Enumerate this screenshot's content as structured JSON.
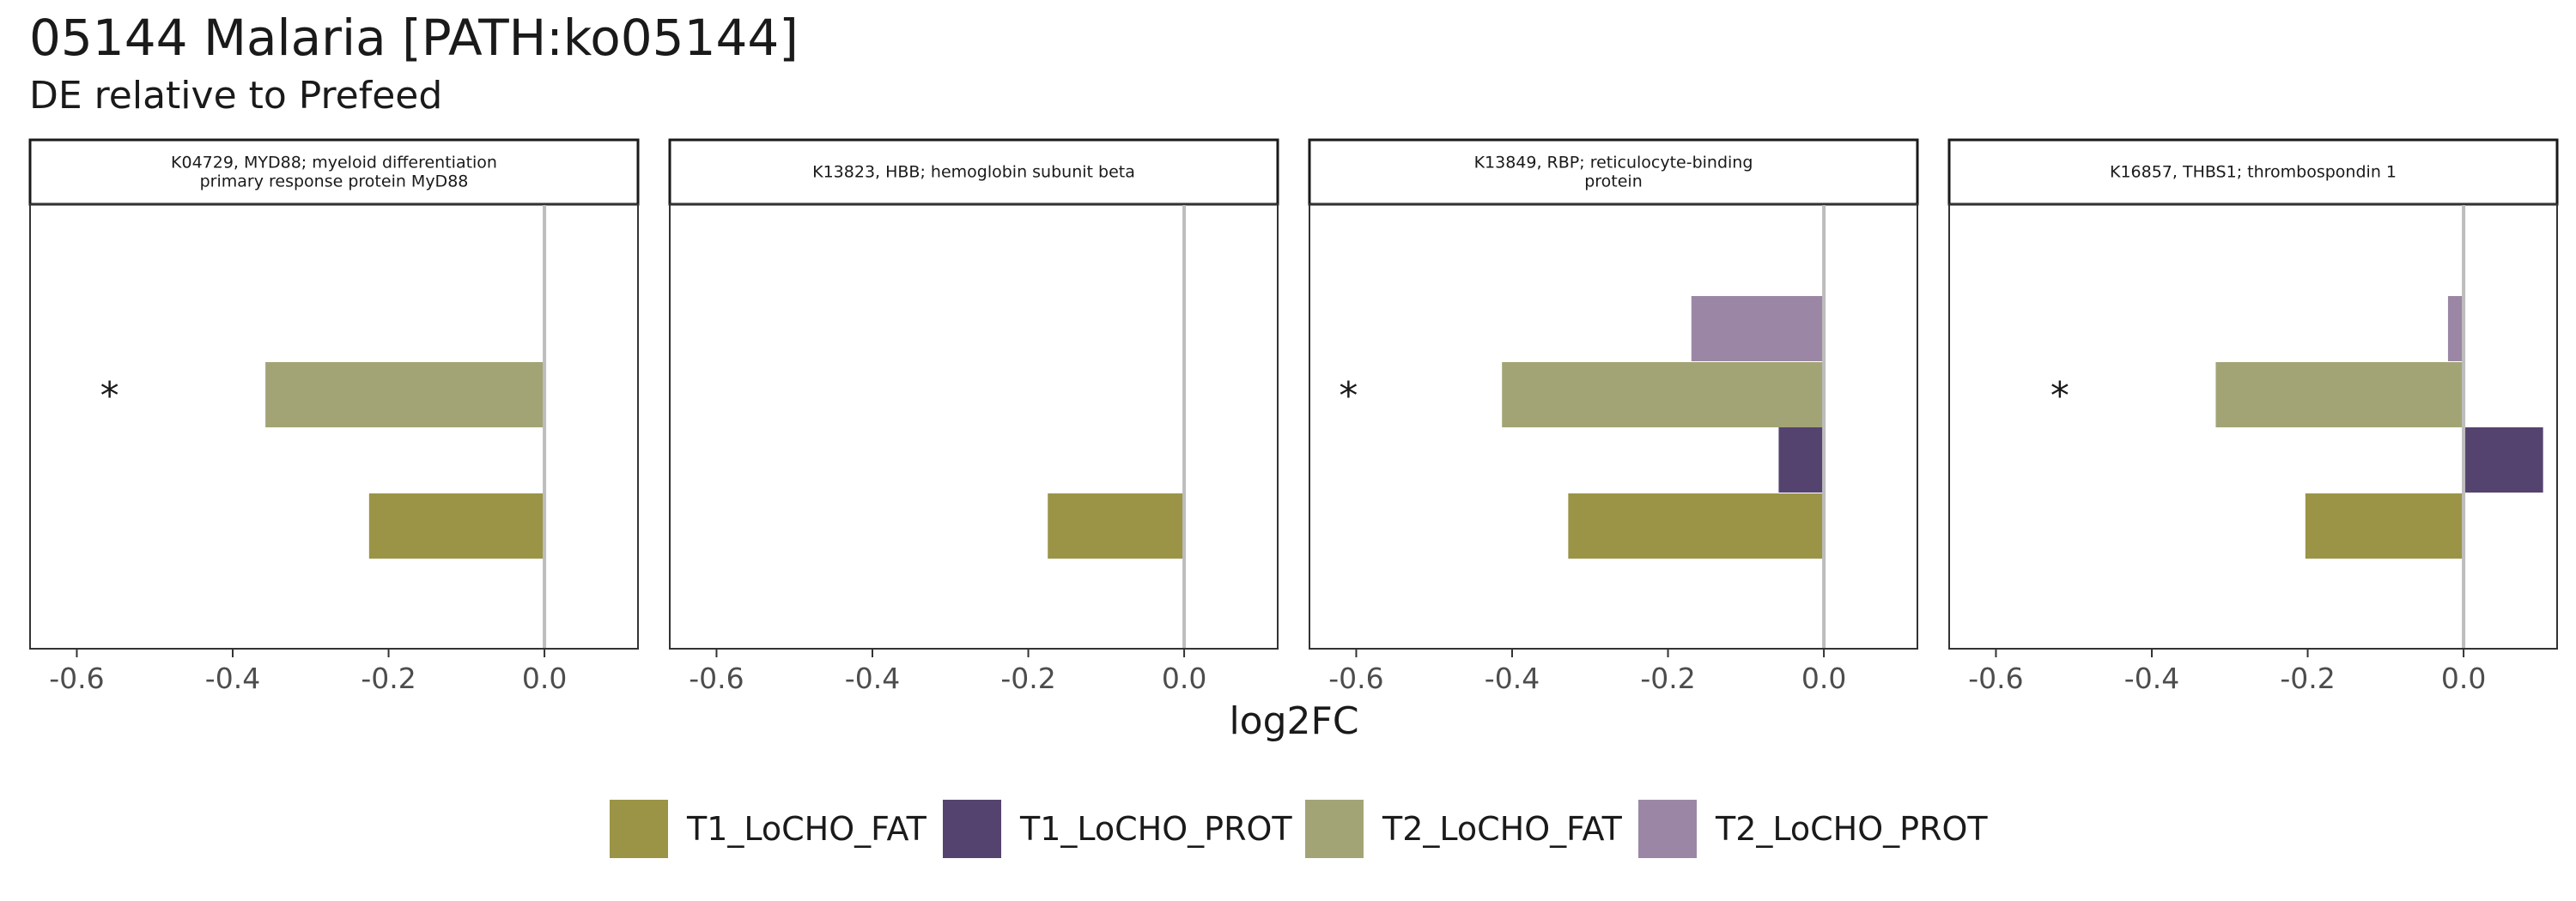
{
  "title": "05144 Malaria [PATH:ko05144]",
  "subtitle": "DE relative to Prefeed",
  "colors": {
    "T1_LoCHO_FAT": "#9b9447",
    "T1_LoCHO_PROT": "#55436f",
    "T2_LoCHO_FAT": "#a3a476",
    "T2_LoCHO_PROT": "#9b87a5"
  },
  "chart_data": {
    "type": "bar",
    "orientation": "horizontal",
    "xlabel": "log2FC",
    "xlim": [
      -0.66,
      0.12
    ],
    "xticks": [
      -0.6,
      -0.4,
      -0.2,
      0.0
    ],
    "xtick_labels": [
      "-0.6",
      "-0.4",
      "-0.2",
      "0.0"
    ],
    "grid": false,
    "legend_position": "bottom",
    "series_order": [
      "T1_LoCHO_FAT",
      "T1_LoCHO_PROT",
      "T2_LoCHO_FAT",
      "T2_LoCHO_PROT"
    ],
    "panels": [
      {
        "title": "K04729, MYD88; myeloid differentiation\nprimary response protein MyD88",
        "values": {
          "T1_LoCHO_FAT": -0.225,
          "T1_LoCHO_PROT": null,
          "T2_LoCHO_FAT": -0.358,
          "T2_LoCHO_PROT": null
        },
        "annotations": [
          {
            "text": "*",
            "series": "T2_LoCHO_FAT",
            "x": -0.558
          }
        ]
      },
      {
        "title": "K13823, HBB; hemoglobin subunit beta",
        "values": {
          "T1_LoCHO_FAT": -0.175,
          "T1_LoCHO_PROT": null,
          "T2_LoCHO_FAT": null,
          "T2_LoCHO_PROT": null
        },
        "annotations": []
      },
      {
        "title": "K13849, RBP; reticulocyte-binding\nprotein",
        "values": {
          "T1_LoCHO_FAT": -0.328,
          "T1_LoCHO_PROT": -0.058,
          "T2_LoCHO_FAT": -0.413,
          "T2_LoCHO_PROT": -0.17
        },
        "annotations": [
          {
            "text": "*",
            "series": "T2_LoCHO_FAT",
            "x": -0.61
          }
        ]
      },
      {
        "title": "K16857, THBS1; thrombospondin 1",
        "values": {
          "T1_LoCHO_FAT": -0.203,
          "T1_LoCHO_PROT": 0.102,
          "T2_LoCHO_FAT": -0.318,
          "T2_LoCHO_PROT": -0.02
        },
        "annotations": [
          {
            "text": "*",
            "series": "T2_LoCHO_FAT",
            "x": -0.518
          }
        ]
      }
    ]
  },
  "legend": {
    "items": [
      {
        "label": "T1_LoCHO_FAT",
        "color": "#9b9447"
      },
      {
        "label": "T1_LoCHO_PROT",
        "color": "#55436f"
      },
      {
        "label": "T2_LoCHO_FAT",
        "color": "#a3a476"
      },
      {
        "label": "T2_LoCHO_PROT",
        "color": "#9b87a5"
      }
    ]
  }
}
